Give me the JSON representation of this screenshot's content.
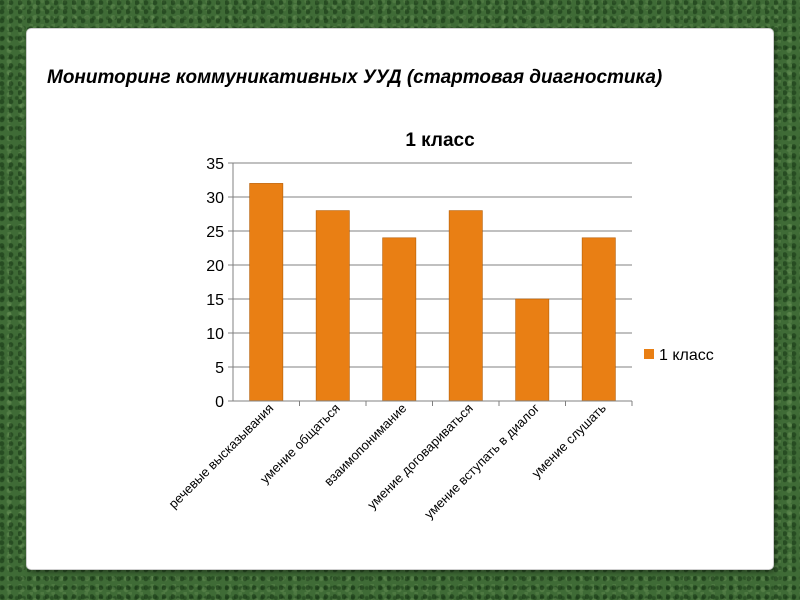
{
  "slide": {
    "title": "Мониторинг коммуникативных УУД (стартовая диагностика)"
  },
  "chart_data": {
    "type": "bar",
    "title": "1 класс",
    "xlabel": "",
    "ylabel": "",
    "categories": [
      "речевые высказывания",
      "умение общаться",
      "взаимопонимание",
      "умение договариваться",
      "умение вступать в диалог",
      "умение слушать"
    ],
    "series": [
      {
        "name": "1 класс",
        "values": [
          32,
          28,
          24,
          28,
          15,
          24
        ],
        "color": "#e97f14"
      }
    ],
    "ylim": [
      0,
      35
    ],
    "yticks": [
      0,
      5,
      10,
      15,
      20,
      25,
      30,
      35
    ],
    "grid": true,
    "legend_position": "right"
  }
}
